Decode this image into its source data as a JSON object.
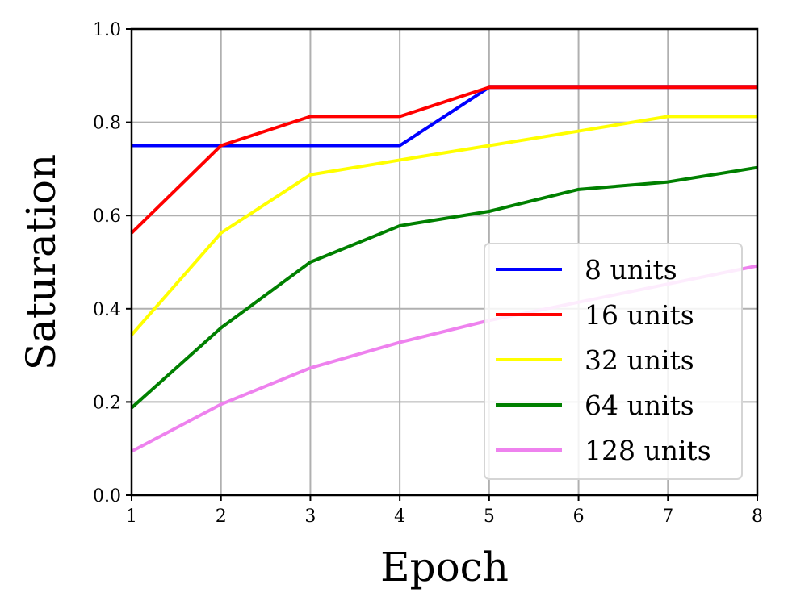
{
  "chart_data": {
    "type": "line",
    "title": "",
    "xlabel": "Epoch",
    "ylabel": "Saturation",
    "x": [
      1,
      2,
      3,
      4,
      5,
      6,
      7,
      8
    ],
    "xlim": [
      1,
      8
    ],
    "ylim": [
      0.0,
      1.0
    ],
    "xticks": [
      "1",
      "2",
      "3",
      "4",
      "5",
      "6",
      "7",
      "8"
    ],
    "yticks": [
      "0.0",
      "0.2",
      "0.4",
      "0.6",
      "0.8",
      "1.0"
    ],
    "grid": true,
    "legend_position": "lower-right",
    "series": [
      {
        "name": "8 units",
        "color": "#0000ff",
        "values": [
          0.75,
          0.75,
          0.75,
          0.75,
          0.875,
          0.875,
          0.875,
          0.875
        ]
      },
      {
        "name": "16 units",
        "color": "#ff0000",
        "values": [
          0.5625,
          0.75,
          0.8125,
          0.8125,
          0.875,
          0.875,
          0.875,
          0.875
        ]
      },
      {
        "name": "32 units",
        "color": "#ffff00",
        "values": [
          0.344,
          0.5625,
          0.6875,
          0.719,
          0.75,
          0.781,
          0.8125,
          0.8125
        ]
      },
      {
        "name": "64 units",
        "color": "#008000",
        "values": [
          0.1875,
          0.359,
          0.5,
          0.578,
          0.609,
          0.656,
          0.672,
          0.703
        ]
      },
      {
        "name": "128 units",
        "color": "#ee82ee",
        "values": [
          0.094,
          0.195,
          0.273,
          0.328,
          0.375,
          0.414,
          0.453,
          0.492
        ]
      }
    ]
  }
}
